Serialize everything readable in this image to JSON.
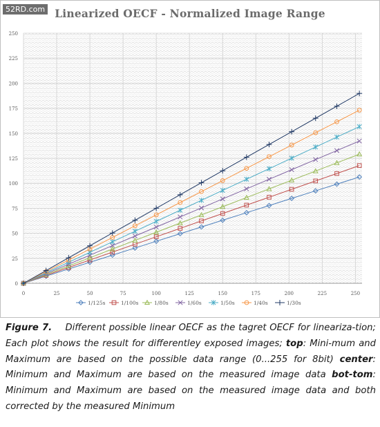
{
  "watermark": "52RD.com",
  "caption": {
    "label": "Figure 7.",
    "segments": [
      {
        "text": "Different possible linear OECF as the tagret OECF for lineariza-tion; Each plot shows the result for differentley exposed images; ",
        "bold": false
      },
      {
        "text": "top",
        "bold": true
      },
      {
        "text": ": Mini-mum and Maximum are based on the possible data range (0...255 for 8bit) ",
        "bold": false
      },
      {
        "text": "center",
        "bold": true
      },
      {
        "text": ": Minimum and Maximum are based on the measured image data ",
        "bold": false
      },
      {
        "text": "bot-tom",
        "bold": true
      },
      {
        "text": ": Minimum and Maximum are based on the measured image data and both corrected by the measured Minimum",
        "bold": false
      }
    ]
  },
  "chart_data": {
    "type": "line",
    "title": "Linearized OECF - Normalized Image Range",
    "xlabel": "",
    "ylabel": "",
    "xlim": [
      0,
      255
    ],
    "ylim": [
      0,
      250
    ],
    "x_ticks": [
      "0",
      "25",
      "50",
      "75",
      "100",
      "125",
      "150",
      "175",
      "200",
      "225",
      "250"
    ],
    "y_ticks": [
      "0",
      "25",
      "50",
      "75",
      "100",
      "125",
      "150",
      "175",
      "200",
      "225",
      "250"
    ],
    "grid": true,
    "legend_position": "bottom",
    "x": [
      0,
      17,
      34,
      50,
      67,
      84,
      100,
      118,
      134,
      150,
      168,
      185,
      202,
      220,
      236,
      253
    ],
    "series": [
      {
        "name": "1/125s",
        "marker": "diamond",
        "color": "#4f81bd",
        "slope": 0.42
      },
      {
        "name": "1/100s",
        "marker": "square",
        "color": "#c0504d",
        "slope": 0.465
      },
      {
        "name": "1/80s",
        "marker": "triangle",
        "color": "#9bbb59",
        "slope": 0.51
      },
      {
        "name": "1/60s",
        "marker": "x",
        "color": "#8064a2",
        "slope": 0.562
      },
      {
        "name": "1/50s",
        "marker": "star",
        "color": "#4bacc6",
        "slope": 0.619
      },
      {
        "name": "1/40s",
        "marker": "circle",
        "color": "#f79646",
        "slope": 0.684
      },
      {
        "name": "1/30s",
        "marker": "plus",
        "color": "#1f3864",
        "slope": 0.75
      }
    ]
  }
}
